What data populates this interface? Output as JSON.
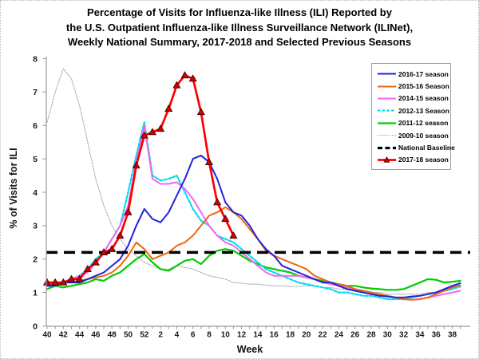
{
  "chart_data": {
    "type": "line",
    "title_lines": [
      "Percentage of Visits for Influenza-like Illness (ILI) Reported by",
      "the U.S. Outpatient Influenza-like Illness Surveillance Network (ILINet),",
      "Weekly National Summary, 2017-2018 and Selected Previous Seasons"
    ],
    "xlabel": "Week",
    "ylabel": "% of Visits for ILI",
    "ylim": [
      0,
      8
    ],
    "y_ticks": [
      0,
      1,
      2,
      3,
      4,
      5,
      6,
      7,
      8
    ],
    "grid": false,
    "legend_position": "upper right",
    "weeks": [
      40,
      41,
      42,
      43,
      44,
      45,
      46,
      47,
      48,
      49,
      50,
      51,
      52,
      1,
      2,
      3,
      4,
      5,
      6,
      7,
      8,
      9,
      10,
      11,
      12,
      13,
      14,
      15,
      16,
      17,
      18,
      19,
      20,
      21,
      22,
      23,
      24,
      25,
      26,
      27,
      28,
      29,
      30,
      31,
      32,
      33,
      34,
      35,
      36,
      37,
      38,
      39
    ],
    "x_tick_labels": [
      40,
      42,
      44,
      46,
      48,
      50,
      52,
      2,
      4,
      6,
      8,
      10,
      12,
      14,
      16,
      18,
      20,
      22,
      24,
      26,
      28,
      30,
      32,
      34,
      36,
      38
    ],
    "baseline": {
      "label": "National Baseline",
      "value": 2.2,
      "color": "#000000",
      "style": "dashed-bold"
    },
    "series": [
      {
        "name": "2016-17 season",
        "color": "#2222DD",
        "style": "solid",
        "width": 2,
        "draw_order": 6,
        "values": [
          1.2,
          1.2,
          1.3,
          1.3,
          1.3,
          1.4,
          1.5,
          1.6,
          1.8,
          2.0,
          2.4,
          3.0,
          3.5,
          3.2,
          3.1,
          3.4,
          3.9,
          4.4,
          5.0,
          5.1,
          4.9,
          4.4,
          3.7,
          3.4,
          3.3,
          3.0,
          2.6,
          2.3,
          2.1,
          1.8,
          1.7,
          1.6,
          1.5,
          1.4,
          1.3,
          1.3,
          1.2,
          1.1,
          1.05,
          1.0,
          0.95,
          0.9,
          0.88,
          0.85,
          0.85,
          0.88,
          0.9,
          0.95,
          1.0,
          1.1,
          1.2,
          1.28
        ]
      },
      {
        "name": "2015-16 Season",
        "color": "#EE6611",
        "style": "solid",
        "width": 2,
        "draw_order": 5,
        "values": [
          1.2,
          1.25,
          1.3,
          1.3,
          1.35,
          1.4,
          1.45,
          1.5,
          1.6,
          1.8,
          2.1,
          2.5,
          2.3,
          2.0,
          2.1,
          2.2,
          2.4,
          2.5,
          2.7,
          3.0,
          3.3,
          3.4,
          3.55,
          3.4,
          3.2,
          2.9,
          2.6,
          2.25,
          2.1,
          2.0,
          1.9,
          1.8,
          1.7,
          1.5,
          1.4,
          1.3,
          1.25,
          1.2,
          1.1,
          1.05,
          1.0,
          0.95,
          0.9,
          0.85,
          0.8,
          0.78,
          0.8,
          0.85,
          0.95,
          1.05,
          1.15,
          1.22
        ]
      },
      {
        "name": "2014-15 season",
        "color": "#F266F2",
        "style": "solid",
        "width": 2,
        "draw_order": 4,
        "values": [
          1.2,
          1.3,
          1.3,
          1.4,
          1.5,
          1.6,
          1.9,
          2.2,
          2.6,
          3.0,
          3.6,
          4.9,
          6.0,
          4.4,
          4.25,
          4.25,
          4.3,
          4.1,
          3.8,
          3.4,
          3.0,
          2.7,
          2.5,
          2.4,
          2.2,
          2.0,
          1.8,
          1.6,
          1.5,
          1.5,
          1.5,
          1.5,
          1.45,
          1.4,
          1.3,
          1.25,
          1.2,
          1.15,
          1.1,
          1.05,
          1.0,
          0.95,
          0.9,
          0.85,
          0.8,
          0.78,
          0.8,
          0.85,
          0.9,
          0.95,
          1.0,
          1.05
        ]
      },
      {
        "name": "2012-13 Season",
        "color": "#00DDEE",
        "style": "dashed",
        "width": 2.2,
        "draw_order": 3,
        "values": [
          1.2,
          1.2,
          1.3,
          1.4,
          1.5,
          1.7,
          2.0,
          2.2,
          2.6,
          3.0,
          4.0,
          5.1,
          6.1,
          4.5,
          4.35,
          4.4,
          4.5,
          4.0,
          3.5,
          3.15,
          3.0,
          2.7,
          2.6,
          2.5,
          2.3,
          2.1,
          1.9,
          1.7,
          1.6,
          1.5,
          1.4,
          1.3,
          1.25,
          1.2,
          1.15,
          1.1,
          1.0,
          1.0,
          0.95,
          0.9,
          0.9,
          0.85,
          0.8,
          0.8,
          0.8,
          0.85,
          0.9,
          0.95,
          1.0,
          1.05,
          1.1,
          1.2
        ]
      },
      {
        "name": "2011-12 season",
        "color": "#00CC00",
        "style": "solid",
        "width": 2.2,
        "draw_order": 2,
        "values": [
          1.1,
          1.2,
          1.15,
          1.2,
          1.25,
          1.3,
          1.4,
          1.35,
          1.5,
          1.6,
          1.8,
          2.0,
          2.15,
          1.9,
          1.7,
          1.65,
          1.8,
          1.95,
          2.0,
          1.85,
          2.1,
          2.25,
          2.3,
          2.25,
          2.1,
          1.95,
          1.85,
          1.75,
          1.7,
          1.65,
          1.6,
          1.5,
          1.45,
          1.4,
          1.35,
          1.3,
          1.25,
          1.2,
          1.2,
          1.15,
          1.12,
          1.1,
          1.08,
          1.08,
          1.1,
          1.2,
          1.3,
          1.4,
          1.38,
          1.3,
          1.32,
          1.35
        ]
      },
      {
        "name": "2009-10 season",
        "color": "#ADADAD",
        "style": "dotted",
        "width": 1.1,
        "draw_order": 1,
        "values": [
          6.1,
          7.0,
          7.7,
          7.4,
          6.6,
          5.5,
          4.4,
          3.6,
          3.0,
          2.6,
          2.3,
          2.1,
          1.9,
          1.8,
          1.7,
          1.7,
          1.8,
          1.75,
          1.7,
          1.6,
          1.5,
          1.45,
          1.4,
          1.3,
          1.28,
          1.25,
          1.25,
          1.22,
          1.2,
          1.2,
          1.18,
          1.18,
          1.2,
          1.2,
          1.15,
          1.15,
          1.1,
          1.1,
          1.1,
          1.05,
          1.0,
          1.0,
          0.95,
          0.95,
          0.95,
          0.95,
          0.95,
          1.0,
          1.0,
          1.05,
          1.1,
          1.15
        ]
      },
      {
        "name": "2017-18 season",
        "color": "#FF0000",
        "style": "solid",
        "width": 2.7,
        "draw_order": 8,
        "marker": "triangle-up",
        "marker_fill": "#D40000",
        "marker_stroke": "#3C0000",
        "values": [
          1.3,
          1.3,
          1.3,
          1.4,
          1.4,
          1.7,
          1.9,
          2.2,
          2.3,
          2.7,
          3.4,
          4.8,
          5.7,
          5.8,
          5.9,
          6.5,
          7.2,
          7.5,
          7.4,
          6.4,
          4.9,
          3.7,
          3.2,
          2.7,
          null,
          null,
          null,
          null,
          null,
          null,
          null,
          null,
          null,
          null,
          null,
          null,
          null,
          null,
          null,
          null,
          null,
          null,
          null,
          null,
          null,
          null,
          null,
          null,
          null,
          null,
          null,
          null
        ]
      }
    ],
    "legend_order": [
      "2016-17 season",
      "2015-16 Season",
      "2014-15 season",
      "2012-13 Season",
      "2011-12 season",
      "2009-10 season",
      "National Baseline",
      "2017-18 season"
    ]
  }
}
